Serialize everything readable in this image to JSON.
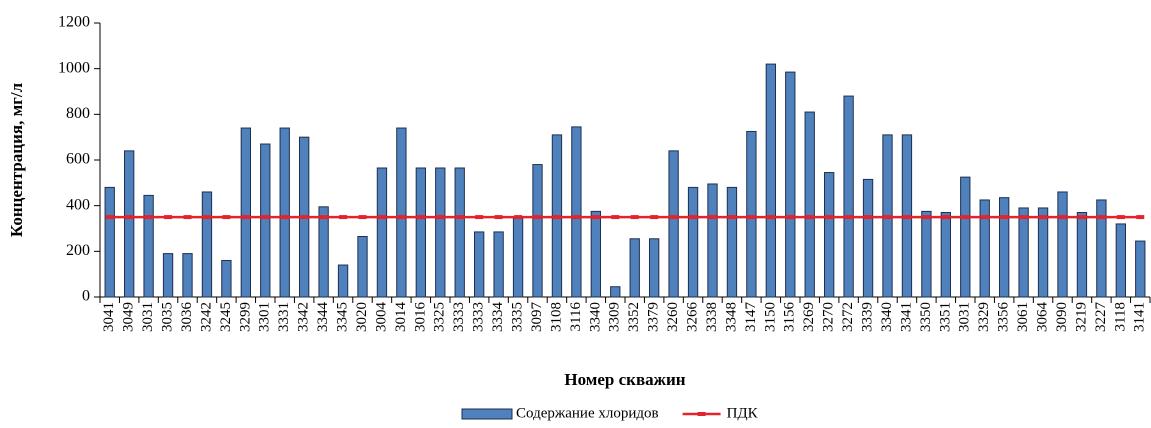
{
  "chart_data": {
    "type": "bar",
    "xlabel": "Номер скважин",
    "ylabel": "Концентрация, мг/л",
    "categories": [
      "3041",
      "3049",
      "3031",
      "3035",
      "3036",
      "3242",
      "3245",
      "3299",
      "3301",
      "3331",
      "3342",
      "3344",
      "3345",
      "3020",
      "3004",
      "3014",
      "3016",
      "3325",
      "3333",
      "3333",
      "3334",
      "3335",
      "3097",
      "3108",
      "3116",
      "3340",
      "3309",
      "3352",
      "3379",
      "3260",
      "3266",
      "3338",
      "3348",
      "3147",
      "3150",
      "3156",
      "3269",
      "3270",
      "3272",
      "3339",
      "3340",
      "3341",
      "3350",
      "3351",
      "3031",
      "3329",
      "3356",
      "3061",
      "3064",
      "3090",
      "3219",
      "3227",
      "3118",
      "3141"
    ],
    "series": [
      {
        "name": "Содержание хлоридов",
        "color": "#4f81bd",
        "type": "bar",
        "values": [
          480,
          640,
          445,
          190,
          190,
          460,
          160,
          740,
          670,
          740,
          700,
          395,
          140,
          265,
          565,
          740,
          565,
          565,
          565,
          285,
          285,
          350,
          580,
          710,
          745,
          375,
          45,
          255,
          255,
          640,
          480,
          495,
          480,
          725,
          1020,
          985,
          810,
          545,
          880,
          515,
          710,
          710,
          375,
          370,
          525,
          425,
          435,
          390,
          390,
          460,
          370,
          425,
          320,
          245
        ]
      },
      {
        "name": "ПДК",
        "color": "#e3242b",
        "type": "line",
        "values": [
          350,
          350,
          350,
          350,
          350,
          350,
          350,
          350,
          350,
          350,
          350,
          350,
          350,
          350,
          350,
          350,
          350,
          350,
          350,
          350,
          350,
          350,
          350,
          350,
          350,
          350,
          350,
          350,
          350,
          350,
          350,
          350,
          350,
          350,
          350,
          350,
          350,
          350,
          350,
          350,
          350,
          350,
          350,
          350,
          350,
          350,
          350,
          350,
          350,
          350,
          350,
          350,
          350,
          350
        ]
      }
    ],
    "ylim": [
      0,
      1200
    ],
    "yticks": [
      0,
      200,
      400,
      600,
      800,
      1000,
      1200
    ],
    "legend": "bottom"
  }
}
